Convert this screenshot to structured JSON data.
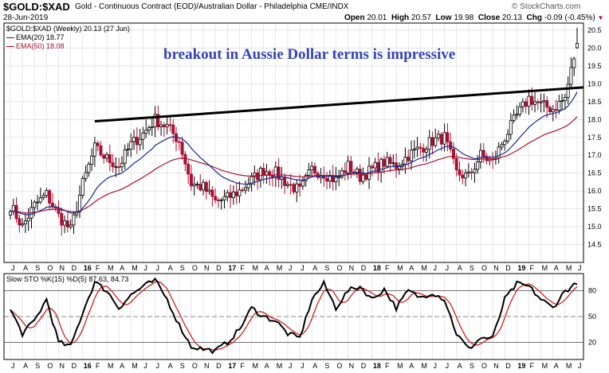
{
  "header": {
    "symbol": "$GOLD:$XAD",
    "description": "Gold - Continuous Contract (EOD)/Australian Dollar - Philadelphia CME/INDX",
    "date": "28-Jun-2019",
    "brand": "© StockCharts.com",
    "open_label": "Open",
    "open": "20.01",
    "high_label": "High",
    "high": "20.57",
    "low_label": "Low",
    "low": "19.98",
    "close_label": "Close",
    "close": "20.13",
    "chg_label": "Chg",
    "chg": "-0.09 (-0.45%)"
  },
  "annotation": "breakout in Aussie Dollar terms is impressive",
  "colors": {
    "up": "#000000",
    "down": "#aa1133",
    "ema20": "#1a2a8c",
    "ema50": "#aa1133",
    "trendline": "#000000",
    "sto_k": "#000000",
    "sto_d": "#cc2222",
    "annotation": "#3344bb"
  },
  "chart_data": [
    {
      "type": "candlestick",
      "title": "$GOLD:$XAD (Weekly) 20.13 (27 Jun)",
      "legend": [
        {
          "name": "EMA(20)",
          "value": "18.77"
        },
        {
          "name": "EMA(50)",
          "value": "18.08"
        }
      ],
      "ylim": [
        14.0,
        20.7
      ],
      "y_ticks": [
        "14.5",
        "15.0",
        "15.5",
        "16.0",
        "16.5",
        "17.0",
        "17.5",
        "18.0",
        "18.5",
        "19.0",
        "19.5",
        "20.0",
        "20.5"
      ],
      "x_start": "2015-07",
      "x_end": "2019-06",
      "x_tick_labels": [
        "J",
        "A",
        "S",
        "O",
        "N",
        "D",
        "16",
        "F",
        "M",
        "A",
        "M",
        "J",
        "J",
        "A",
        "S",
        "O",
        "N",
        "D",
        "17",
        "F",
        "M",
        "A",
        "M",
        "J",
        "J",
        "A",
        "S",
        "O",
        "N",
        "D",
        "18",
        "F",
        "M",
        "A",
        "M",
        "J",
        "J",
        "A",
        "S",
        "O",
        "N",
        "D",
        "19",
        "F",
        "M",
        "A",
        "M",
        "J"
      ],
      "grid": true,
      "price_anchors": {
        "months": [
          "2015-07",
          "2015-08",
          "2015-09",
          "2015-10",
          "2015-11",
          "2015-12",
          "2016-01",
          "2016-02",
          "2016-03",
          "2016-04",
          "2016-05",
          "2016-06",
          "2016-07",
          "2016-08",
          "2016-09",
          "2016-10",
          "2016-11",
          "2016-12",
          "2017-01",
          "2017-02",
          "2017-03",
          "2017-04",
          "2017-05",
          "2017-06",
          "2017-07",
          "2017-08",
          "2017-09",
          "2017-10",
          "2017-11",
          "2017-12",
          "2018-01",
          "2018-02",
          "2018-03",
          "2018-04",
          "2018-05",
          "2018-06",
          "2018-07",
          "2018-08",
          "2018-09",
          "2018-10",
          "2018-11",
          "2018-12",
          "2019-01",
          "2019-02",
          "2019-03",
          "2019-04",
          "2019-05",
          "2019-06"
        ],
        "close": [
          15.6,
          15.0,
          15.6,
          15.9,
          15.3,
          14.9,
          16.2,
          17.2,
          16.9,
          16.7,
          17.3,
          17.6,
          18.0,
          17.8,
          17.4,
          16.2,
          16.1,
          15.7,
          15.8,
          16.0,
          16.3,
          16.6,
          16.5,
          16.2,
          16.0,
          16.6,
          16.5,
          16.3,
          16.7,
          16.4,
          16.6,
          16.8,
          16.7,
          17.0,
          17.2,
          17.4,
          17.5,
          16.5,
          16.4,
          17.0,
          16.8,
          17.5,
          18.1,
          18.6,
          18.4,
          18.3,
          18.6,
          20.13
        ]
      },
      "ema20_endpoint": 18.77,
      "ema50_endpoint": 18.08,
      "trendline": {
        "start": [
          "2016-02",
          17.95
        ],
        "end": [
          "2019-06",
          18.9
        ]
      }
    },
    {
      "type": "line",
      "title": "Slow STO %K(15) %D(5) 87.63, 84.73",
      "series": [
        {
          "name": "%K(15)",
          "last": 87.63
        },
        {
          "name": "%D(5)",
          "last": 84.73
        }
      ],
      "ylim": [
        0,
        100
      ],
      "y_ticks": [
        "20",
        "50",
        "80"
      ],
      "reference_lines": [
        20,
        50,
        80
      ],
      "k_anchors": [
        58,
        30,
        45,
        70,
        20,
        15,
        55,
        90,
        80,
        60,
        75,
        85,
        92,
        70,
        40,
        15,
        12,
        10,
        20,
        35,
        60,
        50,
        45,
        30,
        25,
        70,
        88,
        60,
        80,
        85,
        70,
        82,
        60,
        80,
        72,
        78,
        70,
        30,
        12,
        25,
        25,
        70,
        88,
        85,
        70,
        60,
        80,
        88
      ]
    }
  ]
}
